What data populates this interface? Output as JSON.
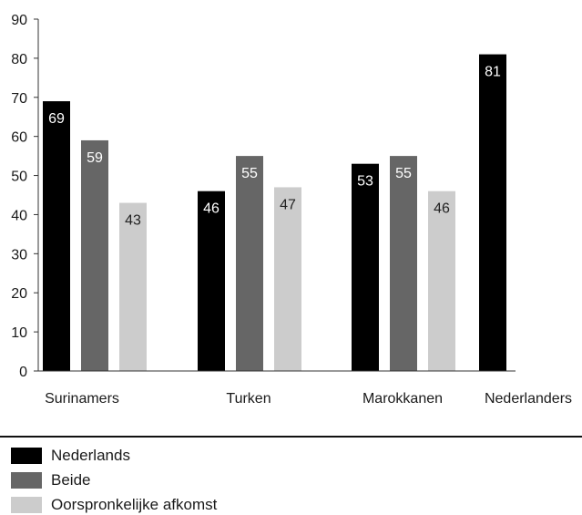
{
  "chart_data": {
    "type": "bar",
    "categories": [
      "Surinamers",
      "Turken",
      "Marokkanen",
      "Nederlanders"
    ],
    "series": [
      {
        "name": "Nederlands",
        "color": "#000000",
        "label_color": "#ffffff",
        "values": [
          69,
          46,
          53,
          81
        ]
      },
      {
        "name": "Beide",
        "color": "#666666",
        "label_color": "#ffffff",
        "values": [
          59,
          55,
          55,
          null
        ]
      },
      {
        "name": "Oorspronkelijke afkomst",
        "color": "#cccccc",
        "label_color": "#222222",
        "values": [
          43,
          47,
          46,
          null
        ]
      }
    ],
    "ylim": [
      0,
      90
    ],
    "yticks": [
      0,
      10,
      20,
      30,
      40,
      50,
      60,
      70,
      80,
      90
    ],
    "grid": false,
    "legend_position": "bottom"
  }
}
